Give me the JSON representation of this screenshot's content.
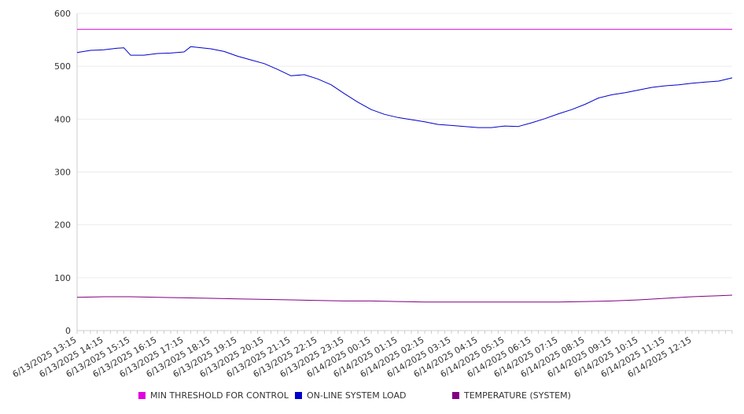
{
  "chart_data": {
    "type": "line",
    "title": "",
    "xlabel": "",
    "ylabel": "",
    "ylim": [
      0,
      600
    ],
    "yticks": [
      0,
      100,
      200,
      300,
      400,
      500,
      600
    ],
    "grid": true,
    "legend_position": "bottom",
    "x_tick_labels": [
      "6/13/2025 13:15",
      "6/13/2025 14:15",
      "6/13/2025 15:15",
      "6/13/2025 16:15",
      "6/13/2025 17:15",
      "6/13/2025 18:15",
      "6/13/2025 19:15",
      "6/13/2025 20:15",
      "6/13/2025 21:15",
      "6/13/2025 22:15",
      "6/13/2025 23:15",
      "6/14/2025 00:15",
      "6/14/2025 01:15",
      "6/14/2025 02:15",
      "6/14/2025 03:15",
      "6/14/2025 04:15",
      "6/14/2025 05:15",
      "6/14/2025 06:15",
      "6/14/2025 07:15",
      "6/14/2025 08:15",
      "6/14/2025 09:15",
      "6/14/2025 10:15",
      "6/14/2025 11:15",
      "6/14/2025 12:15"
    ],
    "x_range": [
      "6/13/2025 13:15",
      "6/14/2025 13:45"
    ],
    "series": [
      {
        "name": "MIN THRESHOLD FOR CONTROL",
        "color": "#e000e0",
        "points": [
          [
            "6/13/2025 13:15",
            570
          ],
          [
            "6/14/2025 13:45",
            570
          ]
        ]
      },
      {
        "name": "ON-LINE SYSTEM LOAD",
        "color": "#0000cc",
        "points": [
          [
            "6/13/2025 13:15",
            526
          ],
          [
            "6/13/2025 13:45",
            530
          ],
          [
            "6/13/2025 14:15",
            531
          ],
          [
            "6/13/2025 14:45",
            534
          ],
          [
            "6/13/2025 15:00",
            535
          ],
          [
            "6/13/2025 15:15",
            521
          ],
          [
            "6/13/2025 15:45",
            521
          ],
          [
            "6/13/2025 16:15",
            524
          ],
          [
            "6/13/2025 16:45",
            525
          ],
          [
            "6/13/2025 17:15",
            527
          ],
          [
            "6/13/2025 17:30",
            537
          ],
          [
            "6/13/2025 18:15",
            533
          ],
          [
            "6/13/2025 18:45",
            528
          ],
          [
            "6/13/2025 19:15",
            519
          ],
          [
            "6/13/2025 19:45",
            512
          ],
          [
            "6/13/2025 20:15",
            505
          ],
          [
            "6/13/2025 20:45",
            494
          ],
          [
            "6/13/2025 21:15",
            482
          ],
          [
            "6/13/2025 21:45",
            484
          ],
          [
            "6/13/2025 22:15",
            476
          ],
          [
            "6/13/2025 22:45",
            465
          ],
          [
            "6/13/2025 23:15",
            448
          ],
          [
            "6/13/2025 23:45",
            432
          ],
          [
            "6/14/2025 00:15",
            418
          ],
          [
            "6/14/2025 00:45",
            409
          ],
          [
            "6/14/2025 01:15",
            403
          ],
          [
            "6/14/2025 01:45",
            399
          ],
          [
            "6/14/2025 02:15",
            395
          ],
          [
            "6/14/2025 02:45",
            390
          ],
          [
            "6/14/2025 03:15",
            388
          ],
          [
            "6/14/2025 03:45",
            386
          ],
          [
            "6/14/2025 04:15",
            384
          ],
          [
            "6/14/2025 04:45",
            384
          ],
          [
            "6/14/2025 05:15",
            387
          ],
          [
            "6/14/2025 05:45",
            386
          ],
          [
            "6/14/2025 06:15",
            393
          ],
          [
            "6/14/2025 06:45",
            401
          ],
          [
            "6/14/2025 07:15",
            410
          ],
          [
            "6/14/2025 07:45",
            418
          ],
          [
            "6/14/2025 08:15",
            428
          ],
          [
            "6/14/2025 08:45",
            440
          ],
          [
            "6/14/2025 09:15",
            446
          ],
          [
            "6/14/2025 09:45",
            450
          ],
          [
            "6/14/2025 10:15",
            455
          ],
          [
            "6/14/2025 10:45",
            460
          ],
          [
            "6/14/2025 11:15",
            463
          ],
          [
            "6/14/2025 11:45",
            465
          ],
          [
            "6/14/2025 12:15",
            468
          ],
          [
            "6/14/2025 12:45",
            470
          ],
          [
            "6/14/2025 13:15",
            472
          ],
          [
            "6/14/2025 13:45",
            478
          ]
        ]
      },
      {
        "name": "TEMPERATURE (SYSTEM)",
        "color": "#800080",
        "points": [
          [
            "6/13/2025 13:15",
            63
          ],
          [
            "6/13/2025 14:15",
            64
          ],
          [
            "6/13/2025 15:15",
            64
          ],
          [
            "6/13/2025 16:15",
            63
          ],
          [
            "6/13/2025 17:15",
            62
          ],
          [
            "6/13/2025 18:15",
            61
          ],
          [
            "6/13/2025 19:15",
            60
          ],
          [
            "6/13/2025 20:15",
            59
          ],
          [
            "6/13/2025 21:15",
            58
          ],
          [
            "6/13/2025 22:15",
            57
          ],
          [
            "6/13/2025 23:15",
            56
          ],
          [
            "6/14/2025 00:15",
            56
          ],
          [
            "6/14/2025 01:15",
            55
          ],
          [
            "6/14/2025 02:15",
            54
          ],
          [
            "6/14/2025 03:15",
            54
          ],
          [
            "6/14/2025 04:15",
            54
          ],
          [
            "6/14/2025 05:15",
            54
          ],
          [
            "6/14/2025 06:15",
            54
          ],
          [
            "6/14/2025 07:15",
            54
          ],
          [
            "6/14/2025 08:15",
            55
          ],
          [
            "6/14/2025 09:15",
            56
          ],
          [
            "6/14/2025 10:15",
            58
          ],
          [
            "6/14/2025 11:15",
            61
          ],
          [
            "6/14/2025 12:15",
            64
          ],
          [
            "6/14/2025 13:15",
            66
          ],
          [
            "6/14/2025 13:45",
            67
          ]
        ]
      }
    ]
  }
}
